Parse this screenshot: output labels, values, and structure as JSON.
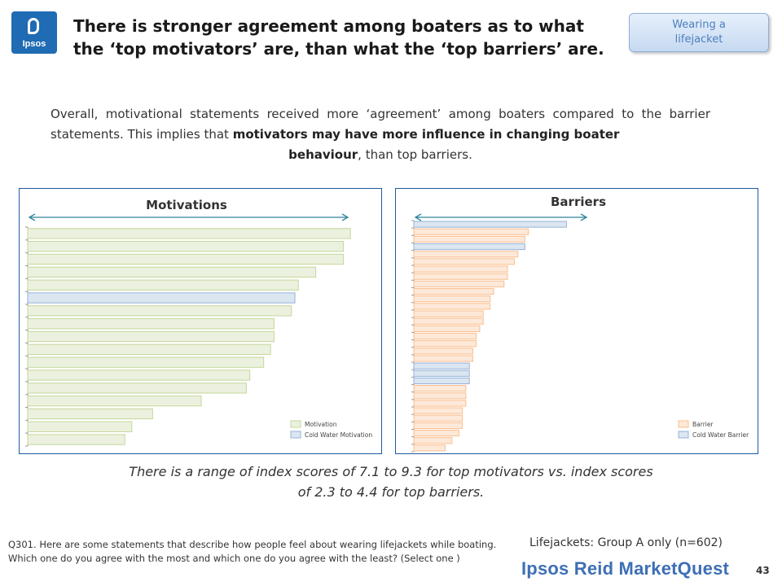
{
  "logo": {
    "text": "Ipsos"
  },
  "title": "There is stronger agreement among boaters as to what the ‘top motivators’ are, than what the ‘top barriers’ are.",
  "tag": "Wearing a lifejacket",
  "intro": {
    "part1": "Overall, motivational statements received more ‘agreement’  among boaters compared to the barrier statements. This implies that ",
    "bold": "motivators may have more influence in changing boater",
    "bold2": "behaviour",
    "part2": ",  than top barriers."
  },
  "colors": {
    "motivation": "#ebf1de",
    "motivation_border": "#c4d79b",
    "cold_water": "#dce6f1",
    "cold_water_border": "#95b3d7",
    "barrier": "#fde9d9",
    "barrier_border": "#fabf8f",
    "arrow": "#31859c",
    "frame": "#1f5a9e"
  },
  "chart_data": [
    {
      "type": "bar",
      "orientation": "horizontal",
      "title": "Motivations",
      "legend": [
        "Motivation",
        "Cold Water Motivation"
      ],
      "legend_position": "bottom-right",
      "values": [
        9.3,
        9.1,
        9.1,
        8.3,
        7.8,
        7.7,
        7.6,
        7.1,
        7.1,
        7.0,
        6.8,
        6.4,
        6.3,
        5.0,
        3.6,
        3.0,
        2.8
      ],
      "groups": [
        "Motivation",
        "Motivation",
        "Motivation",
        "Motivation",
        "Motivation",
        "Cold Water Motivation",
        "Motivation",
        "Motivation",
        "Motivation",
        "Motivation",
        "Motivation",
        "Motivation",
        "Motivation",
        "Motivation",
        "Motivation",
        "Motivation",
        "Motivation"
      ],
      "xlim": [
        0,
        9.5
      ]
    },
    {
      "type": "bar",
      "orientation": "horizontal",
      "title": "Barriers",
      "legend": [
        "Barrier",
        "Cold Water Barrier"
      ],
      "legend_position": "bottom-right",
      "values": [
        4.4,
        3.3,
        3.2,
        3.2,
        3.0,
        2.9,
        2.7,
        2.7,
        2.6,
        2.3,
        2.2,
        2.2,
        2.0,
        2.0,
        1.9,
        1.8,
        1.8,
        1.7,
        1.7,
        1.6,
        1.6,
        1.6,
        1.5,
        1.5,
        1.5,
        1.4,
        1.4,
        1.4,
        1.3,
        1.1,
        0.9
      ],
      "groups": [
        "Cold Water Barrier",
        "Barrier",
        "Barrier",
        "Cold Water Barrier",
        "Barrier",
        "Barrier",
        "Barrier",
        "Barrier",
        "Barrier",
        "Barrier",
        "Barrier",
        "Barrier",
        "Barrier",
        "Barrier",
        "Barrier",
        "Barrier",
        "Barrier",
        "Barrier",
        "Barrier",
        "Cold Water Barrier",
        "Cold Water Barrier",
        "Cold Water Barrier",
        "Barrier",
        "Barrier",
        "Barrier",
        "Barrier",
        "Barrier",
        "Barrier",
        "Barrier",
        "Barrier",
        "Barrier"
      ],
      "xlim": [
        0,
        9.5
      ]
    }
  ],
  "summary": "There is a range of index scores of 7.1 to 9.3 for top motivators vs. index scores of 2.3 to 4.4 for top barriers.",
  "question": "Q301. Here are some statements that describe how people feel about wearing lifejackets while boating. Which one do you agree with the most and which one do you agree with the least?   (Select one )",
  "sample": "Lifejackets: Group A only (n=602)",
  "brand": "Ipsos Reid MarketQuest",
  "page_number": "43"
}
